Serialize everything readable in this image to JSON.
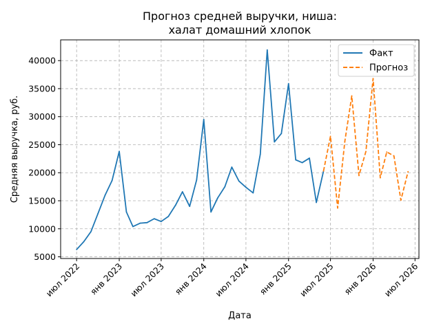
{
  "chart_data": {
    "type": "line",
    "title_lines": [
      "Прогноз средней выручки, ниша:",
      "халат домашний хлопок"
    ],
    "xlabel": "Дата",
    "ylabel": "Средняя выручка, руб.",
    "ylim": [
      4700,
      43700
    ],
    "yticks": [
      5000,
      10000,
      15000,
      20000,
      25000,
      30000,
      35000,
      40000
    ],
    "xlim": [
      "2022-04-23",
      "2026-07-18"
    ],
    "xticks": [
      {
        "date": "2022-07-01",
        "label": "июл 2022"
      },
      {
        "date": "2023-01-01",
        "label": "янв 2023"
      },
      {
        "date": "2023-07-01",
        "label": "июл 2023"
      },
      {
        "date": "2024-01-01",
        "label": "янв 2024"
      },
      {
        "date": "2024-07-01",
        "label": "июл 2024"
      },
      {
        "date": "2025-01-01",
        "label": "янв 2025"
      },
      {
        "date": "2025-07-01",
        "label": "июл 2025"
      },
      {
        "date": "2026-01-01",
        "label": "янв 2026"
      },
      {
        "date": "2026-07-01",
        "label": "июл 2026"
      }
    ],
    "grid": true,
    "legend_position": "top-right",
    "series": [
      {
        "name": "Факт",
        "color": "#1f77b4",
        "style": "solid",
        "points": [
          [
            "2022-07-01",
            6300
          ],
          [
            "2022-08-01",
            7700
          ],
          [
            "2022-09-01",
            9500
          ],
          [
            "2022-10-01",
            12700
          ],
          [
            "2022-11-01",
            16000
          ],
          [
            "2022-12-01",
            18600
          ],
          [
            "2023-01-01",
            23800
          ],
          [
            "2023-02-01",
            13000
          ],
          [
            "2023-03-01",
            10400
          ],
          [
            "2023-04-01",
            11000
          ],
          [
            "2023-05-01",
            11100
          ],
          [
            "2023-06-01",
            11800
          ],
          [
            "2023-07-01",
            11300
          ],
          [
            "2023-08-01",
            12200
          ],
          [
            "2023-09-01",
            14200
          ],
          [
            "2023-10-01",
            16600
          ],
          [
            "2023-11-01",
            14000
          ],
          [
            "2023-12-01",
            18700
          ],
          [
            "2024-01-01",
            29500
          ],
          [
            "2024-02-01",
            13000
          ],
          [
            "2024-03-01",
            15500
          ],
          [
            "2024-04-01",
            17500
          ],
          [
            "2024-05-01",
            21000
          ],
          [
            "2024-06-01",
            18500
          ],
          [
            "2024-07-01",
            17400
          ],
          [
            "2024-08-01",
            16400
          ],
          [
            "2024-09-01",
            23300
          ],
          [
            "2024-10-01",
            41900
          ],
          [
            "2024-11-01",
            25500
          ],
          [
            "2024-12-01",
            27000
          ],
          [
            "2025-01-01",
            35900
          ],
          [
            "2025-02-01",
            22300
          ],
          [
            "2025-03-01",
            21800
          ],
          [
            "2025-04-01",
            22600
          ],
          [
            "2025-05-01",
            14700
          ],
          [
            "2025-06-01",
            20300
          ]
        ]
      },
      {
        "name": "Прогноз",
        "color": "#ff7f0e",
        "style": "dashed",
        "points": [
          [
            "2025-06-01",
            20300
          ],
          [
            "2025-07-01",
            26500
          ],
          [
            "2025-08-01",
            13700
          ],
          [
            "2025-09-01",
            25600
          ],
          [
            "2025-10-01",
            33700
          ],
          [
            "2025-11-01",
            19500
          ],
          [
            "2025-12-01",
            23800
          ],
          [
            "2026-01-01",
            36800
          ],
          [
            "2026-02-01",
            19100
          ],
          [
            "2026-03-01",
            23700
          ],
          [
            "2026-04-01",
            23000
          ],
          [
            "2026-05-01",
            15100
          ],
          [
            "2026-06-01",
            20200
          ]
        ]
      }
    ]
  }
}
